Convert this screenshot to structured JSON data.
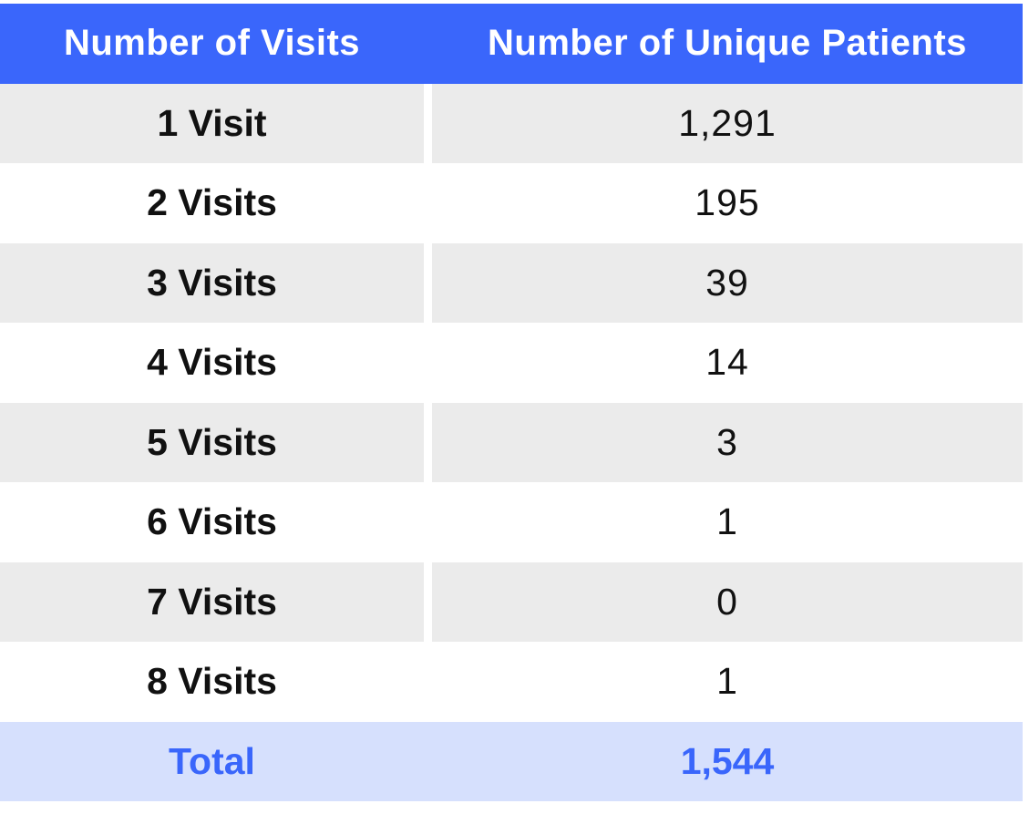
{
  "chart_data": {
    "type": "table",
    "columns": [
      "Number of Visits",
      "Number of Unique Patients"
    ],
    "rows": [
      {
        "label": "1 Visit",
        "value": "1,291"
      },
      {
        "label": "2 Visits",
        "value": "195"
      },
      {
        "label": "3 Visits",
        "value": "39"
      },
      {
        "label": "4 Visits",
        "value": "14"
      },
      {
        "label": "5 Visits",
        "value": "3"
      },
      {
        "label": "6 Visits",
        "value": "1"
      },
      {
        "label": "7 Visits",
        "value": "0"
      },
      {
        "label": "8 Visits",
        "value": "1"
      }
    ],
    "total": {
      "label": "Total",
      "value": "1,544"
    }
  },
  "colors": {
    "header_bg": "#3a66fb",
    "header_text": "#ffffff",
    "shaded_row": "#ebebeb",
    "total_bg": "#d6e0fd",
    "total_text": "#3a66fb"
  }
}
